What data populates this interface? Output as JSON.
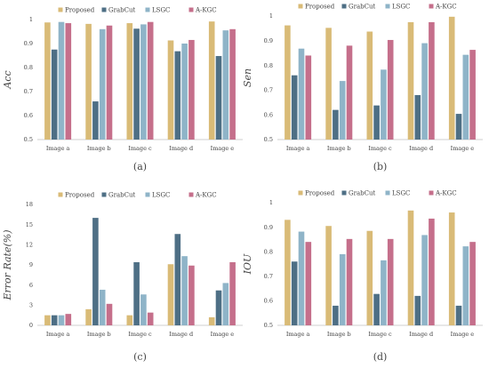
{
  "series_colors": [
    "#d9bb77",
    "#4e6f85",
    "#8fb4c8",
    "#c56f8b"
  ],
  "chart_data": [
    {
      "type": "bar",
      "id": "a",
      "caption": "(a)",
      "ylabel": "Acc",
      "ylim": [
        0.5,
        1
      ],
      "yticks": [
        0.5,
        0.6,
        0.7,
        0.8,
        0.9,
        1
      ],
      "tick_decimals": 1,
      "tick_labels": [
        "0.5",
        "0.6",
        "0.7",
        "0.8",
        "0.9",
        "1"
      ],
      "categories": [
        "Image a",
        "Image b",
        "Image c",
        "Image d",
        "Image e"
      ],
      "grid": false,
      "legend": "top",
      "series": [
        {
          "name": "Proposed",
          "values": [
            0.988,
            0.982,
            0.985,
            0.913,
            0.992
          ]
        },
        {
          "name": "GrabCut",
          "values": [
            0.875,
            0.659,
            0.962,
            0.868,
            0.848
          ]
        },
        {
          "name": "LSGC",
          "values": [
            0.99,
            0.96,
            0.98,
            0.9,
            0.955
          ]
        },
        {
          "name": "A-KGC",
          "values": [
            0.985,
            0.975,
            0.99,
            0.915,
            0.96
          ]
        }
      ]
    },
    {
      "type": "bar",
      "id": "b",
      "caption": "(b)",
      "ylabel": "Sen",
      "ylim": [
        0.5,
        1
      ],
      "yticks": [
        0.5,
        0.6,
        0.7,
        0.8,
        0.9,
        1
      ],
      "tick_decimals": 1,
      "tick_labels": [
        "0.5",
        "0.6",
        "0.7",
        "0.8",
        "0.9",
        "1"
      ],
      "categories": [
        "Image a",
        "Image b",
        "Image c",
        "Image d",
        "Image e"
      ],
      "grid": false,
      "legend": "top",
      "series": [
        {
          "name": "Proposed",
          "values": [
            0.962,
            0.952,
            0.937,
            0.975,
            0.997
          ]
        },
        {
          "name": "GrabCut",
          "values": [
            0.76,
            0.62,
            0.638,
            0.68,
            0.604
          ]
        },
        {
          "name": "LSGC",
          "values": [
            0.868,
            0.737,
            0.783,
            0.89,
            0.843
          ]
        },
        {
          "name": "A-KGC",
          "values": [
            0.84,
            0.88,
            0.903,
            0.975,
            0.863
          ]
        }
      ]
    },
    {
      "type": "bar",
      "id": "c",
      "caption": "(c)",
      "ylabel": "Error Rate(%)",
      "ylim": [
        0,
        18
      ],
      "yticks": [
        0,
        3,
        6,
        9,
        12,
        15,
        18
      ],
      "tick_decimals": 0,
      "tick_labels": [
        "0",
        "3",
        "6",
        "9",
        "12",
        "15",
        "18"
      ],
      "categories": [
        "Image a",
        "Image b",
        "Image c",
        "Image d",
        "Image e"
      ],
      "grid": false,
      "legend": "top",
      "series": [
        {
          "name": "Proposed",
          "values": [
            1.5,
            2.4,
            1.5,
            9.1,
            1.2
          ]
        },
        {
          "name": "GrabCut",
          "values": [
            1.5,
            16.0,
            9.4,
            13.6,
            5.2
          ]
        },
        {
          "name": "LSGC",
          "values": [
            1.5,
            5.3,
            4.6,
            10.3,
            6.3
          ]
        },
        {
          "name": "A-KGC",
          "values": [
            1.7,
            3.2,
            1.9,
            8.9,
            9.4
          ]
        }
      ]
    },
    {
      "type": "bar",
      "id": "d",
      "caption": "(d)",
      "ylabel": "IOU",
      "ylim": [
        0.5,
        1
      ],
      "yticks": [
        0.5,
        0.6,
        0.7,
        0.8,
        0.9,
        1
      ],
      "tick_decimals": 1,
      "tick_labels": [
        "0.5",
        "0.6",
        "0.7",
        "0.8",
        "0.9",
        "1"
      ],
      "categories": [
        "Image a",
        "Image b",
        "Image c",
        "Image d",
        "Image e"
      ],
      "grid": false,
      "legend": "top",
      "series": [
        {
          "name": "Proposed",
          "values": [
            0.93,
            0.905,
            0.885,
            0.968,
            0.96
          ]
        },
        {
          "name": "GrabCut",
          "values": [
            0.76,
            0.58,
            0.628,
            0.62,
            0.58
          ]
        },
        {
          "name": "LSGC",
          "values": [
            0.882,
            0.79,
            0.765,
            0.868,
            0.822
          ]
        },
        {
          "name": "A-KGC",
          "values": [
            0.84,
            0.852,
            0.852,
            0.935,
            0.84
          ]
        }
      ]
    }
  ]
}
